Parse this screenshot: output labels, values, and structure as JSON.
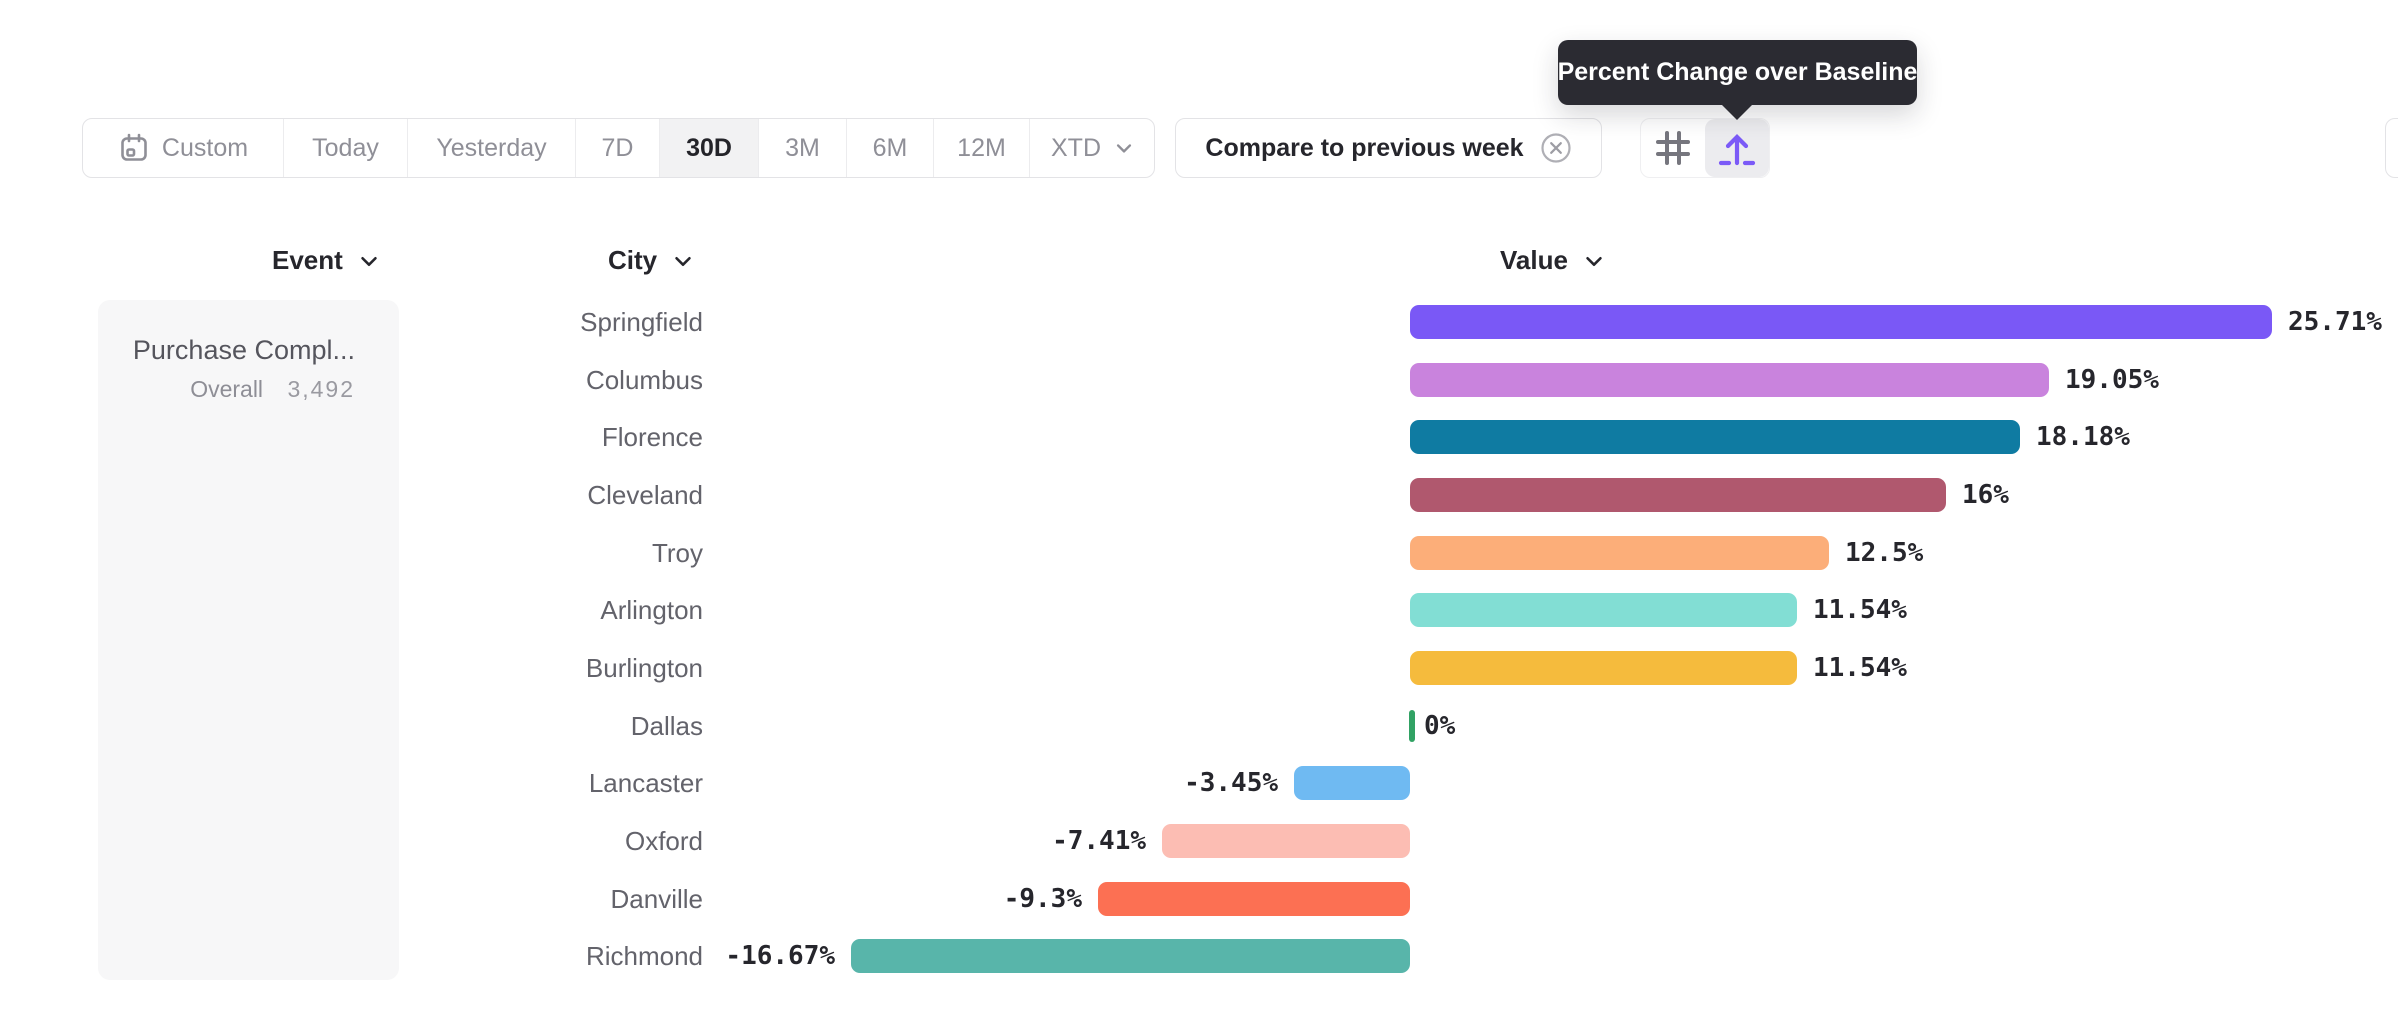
{
  "tooltip": {
    "text": "Percent Change over Baseline"
  },
  "toolbar": {
    "date_ranges": [
      {
        "label": "Custom",
        "icon": "calendar",
        "selected": false
      },
      {
        "label": "Today",
        "selected": false
      },
      {
        "label": "Yesterday",
        "selected": false
      },
      {
        "label": "7D",
        "selected": false
      },
      {
        "label": "30D",
        "selected": true
      },
      {
        "label": "3M",
        "selected": false
      },
      {
        "label": "6M",
        "selected": false
      },
      {
        "label": "12M",
        "selected": false
      },
      {
        "label": "XTD",
        "selected": false,
        "has_chevron": true
      }
    ],
    "compare_button": {
      "label": "Compare to previous week",
      "icon": "x-circle"
    },
    "view_toggle": [
      {
        "icon": "hash-grid",
        "selected": false
      },
      {
        "icon": "percent-change-baseline",
        "selected": true
      }
    ]
  },
  "columns": [
    {
      "label": "Event"
    },
    {
      "label": "City"
    },
    {
      "label": "Value"
    }
  ],
  "event_panel": {
    "event_name": "Purchase Compl...",
    "overall_label": "Overall",
    "overall_value": "3,492"
  },
  "chart_data": {
    "type": "bar",
    "orientation": "horizontal",
    "title": "Percent Change over Baseline",
    "xlabel": "Value",
    "ylabel": "City",
    "value_unit": "percent",
    "xlim": [
      -16.67,
      25.71
    ],
    "grid": false,
    "categories": [
      "Springfield",
      "Columbus",
      "Florence",
      "Cleveland",
      "Troy",
      "Arlington",
      "Burlington",
      "Dallas",
      "Lancaster",
      "Oxford",
      "Danville",
      "Richmond"
    ],
    "values": [
      25.71,
      19.05,
      18.18,
      16,
      12.5,
      11.54,
      11.54,
      0,
      -3.45,
      -7.41,
      -9.3,
      -16.67
    ],
    "value_labels": [
      "25.71%",
      "19.05%",
      "18.18%",
      "16%",
      "12.5%",
      "11.54%",
      "11.54%",
      "0%",
      "-3.45%",
      "-7.41%",
      "-9.3%",
      "-16.67%"
    ],
    "colors": [
      "#7A58F6",
      "#C983DD",
      "#0F7BA2",
      "#B0586E",
      "#FCAE79",
      "#82DED4",
      "#F5BB3D",
      "#31A264",
      "#6FBAF2",
      "#FCBDB3",
      "#FC7053",
      "#58B5AA"
    ]
  },
  "colors": {
    "accent_purple": "#7B5AF7",
    "tooltip_bg": "#2B2B32",
    "border": "#E3E3E6",
    "selected_segment_bg": "#F2F2F3",
    "muted_text": "#8F8F97",
    "dark_text": "#26262C",
    "panel_bg": "#F7F7F8",
    "zero_tick_green": "#31A264"
  }
}
